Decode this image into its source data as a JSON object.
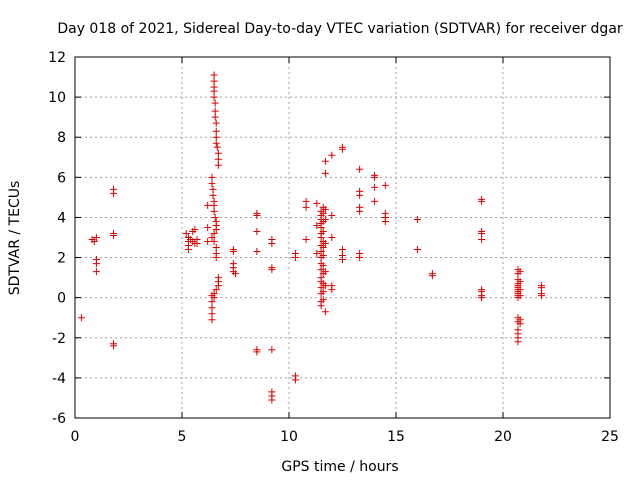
{
  "chart_data": {
    "type": "scatter",
    "title": "Day 018 of 2021, Sidereal Day-to-day VTEC variation (SDTVAR) for receiver dgar",
    "xlabel": "GPS time / hours",
    "ylabel": "SDTVAR / TECUs",
    "xlim": [
      0,
      25
    ],
    "ylim": [
      -6,
      12
    ],
    "xticks": [
      0,
      5,
      10,
      15,
      20,
      25
    ],
    "yticks": [
      -6,
      -4,
      -2,
      0,
      2,
      4,
      6,
      8,
      10,
      12
    ],
    "grid": true,
    "marker": "+",
    "color": "#dd0000",
    "series": [
      {
        "name": "SDTVAR",
        "points": [
          [
            0.3,
            -1.0
          ],
          [
            0.8,
            2.9
          ],
          [
            1.0,
            3.0
          ],
          [
            0.9,
            2.8
          ],
          [
            1.0,
            1.9
          ],
          [
            1.0,
            1.7
          ],
          [
            1.0,
            1.3
          ],
          [
            1.8,
            5.4
          ],
          [
            1.8,
            5.2
          ],
          [
            1.8,
            3.2
          ],
          [
            1.8,
            3.1
          ],
          [
            1.8,
            -2.3
          ],
          [
            1.8,
            -2.4
          ],
          [
            5.2,
            3.2
          ],
          [
            5.3,
            3.0
          ],
          [
            5.3,
            2.8
          ],
          [
            5.3,
            2.6
          ],
          [
            5.3,
            2.4
          ],
          [
            5.4,
            2.9
          ],
          [
            5.5,
            3.3
          ],
          [
            5.5,
            2.8
          ],
          [
            5.6,
            3.4
          ],
          [
            5.6,
            2.7
          ],
          [
            5.7,
            2.9
          ],
          [
            5.7,
            2.7
          ],
          [
            6.2,
            4.6
          ],
          [
            6.2,
            3.5
          ],
          [
            6.2,
            2.8
          ],
          [
            6.5,
            11.1
          ],
          [
            6.5,
            10.8
          ],
          [
            6.5,
            10.5
          ],
          [
            6.5,
            10.3
          ],
          [
            6.5,
            10.0
          ],
          [
            6.55,
            9.7
          ],
          [
            6.55,
            9.3
          ],
          [
            6.55,
            9.0
          ],
          [
            6.6,
            8.7
          ],
          [
            6.6,
            8.3
          ],
          [
            6.6,
            8.0
          ],
          [
            6.6,
            7.7
          ],
          [
            6.65,
            7.5
          ],
          [
            6.7,
            7.2
          ],
          [
            6.7,
            6.9
          ],
          [
            6.7,
            6.6
          ],
          [
            6.4,
            6.0
          ],
          [
            6.4,
            5.7
          ],
          [
            6.45,
            5.4
          ],
          [
            6.45,
            5.1
          ],
          [
            6.5,
            4.8
          ],
          [
            6.5,
            4.6
          ],
          [
            6.5,
            4.3
          ],
          [
            6.55,
            4.0
          ],
          [
            6.6,
            3.8
          ],
          [
            6.6,
            3.6
          ],
          [
            6.6,
            3.4
          ],
          [
            6.5,
            3.2
          ],
          [
            6.4,
            3.0
          ],
          [
            6.5,
            2.8
          ],
          [
            6.6,
            2.5
          ],
          [
            6.6,
            2.2
          ],
          [
            6.6,
            2.0
          ],
          [
            6.7,
            1.0
          ],
          [
            6.7,
            0.8
          ],
          [
            6.7,
            0.6
          ],
          [
            6.6,
            0.4
          ],
          [
            6.5,
            0.2
          ],
          [
            6.5,
            0.0
          ],
          [
            6.4,
            0.1
          ],
          [
            6.4,
            -0.2
          ],
          [
            6.4,
            -0.5
          ],
          [
            6.4,
            -0.8
          ],
          [
            6.4,
            -1.1
          ],
          [
            7.4,
            2.4
          ],
          [
            7.4,
            2.3
          ],
          [
            7.4,
            1.7
          ],
          [
            7.4,
            1.5
          ],
          [
            7.4,
            1.3
          ],
          [
            7.5,
            1.2
          ],
          [
            8.5,
            4.2
          ],
          [
            8.5,
            4.1
          ],
          [
            8.5,
            3.3
          ],
          [
            8.5,
            2.3
          ],
          [
            8.5,
            -2.6
          ],
          [
            8.5,
            -2.7
          ],
          [
            9.2,
            2.9
          ],
          [
            9.2,
            2.7
          ],
          [
            9.2,
            1.5
          ],
          [
            9.2,
            1.4
          ],
          [
            9.2,
            -2.6
          ],
          [
            9.2,
            -4.7
          ],
          [
            9.2,
            -4.9
          ],
          [
            9.2,
            -5.1
          ],
          [
            10.3,
            2.2
          ],
          [
            10.3,
            2.0
          ],
          [
            10.3,
            -3.9
          ],
          [
            10.3,
            -4.1
          ],
          [
            10.8,
            4.8
          ],
          [
            10.8,
            4.5
          ],
          [
            10.8,
            2.9
          ],
          [
            11.3,
            4.7
          ],
          [
            11.3,
            3.6
          ],
          [
            11.3,
            2.2
          ],
          [
            11.5,
            4.3
          ],
          [
            11.5,
            4.1
          ],
          [
            11.5,
            3.9
          ],
          [
            11.5,
            3.7
          ],
          [
            11.5,
            3.5
          ],
          [
            11.5,
            3.2
          ],
          [
            11.5,
            3.0
          ],
          [
            11.5,
            2.6
          ],
          [
            11.5,
            2.3
          ],
          [
            11.5,
            2.0
          ],
          [
            11.5,
            1.7
          ],
          [
            11.5,
            1.4
          ],
          [
            11.5,
            1.0
          ],
          [
            11.5,
            0.8
          ],
          [
            11.5,
            0.5
          ],
          [
            11.5,
            0.2
          ],
          [
            11.5,
            -0.2
          ],
          [
            11.5,
            -0.4
          ],
          [
            11.6,
            4.5
          ],
          [
            11.6,
            4.2
          ],
          [
            11.6,
            3.8
          ],
          [
            11.6,
            3.3
          ],
          [
            11.6,
            2.8
          ],
          [
            11.6,
            2.5
          ],
          [
            11.6,
            2.1
          ],
          [
            11.6,
            1.6
          ],
          [
            11.6,
            1.2
          ],
          [
            11.6,
            0.7
          ],
          [
            11.6,
            0.3
          ],
          [
            11.6,
            -0.1
          ],
          [
            11.7,
            4.4
          ],
          [
            11.7,
            3.9
          ],
          [
            11.7,
            2.7
          ],
          [
            11.7,
            1.3
          ],
          [
            11.7,
            0.6
          ],
          [
            11.7,
            -0.7
          ],
          [
            11.7,
            6.8
          ],
          [
            11.7,
            6.2
          ],
          [
            12.0,
            7.1
          ],
          [
            12.0,
            4.1
          ],
          [
            12.0,
            3.0
          ],
          [
            12.0,
            0.6
          ],
          [
            12.0,
            0.4
          ],
          [
            12.5,
            7.5
          ],
          [
            12.5,
            7.4
          ],
          [
            12.5,
            2.4
          ],
          [
            12.5,
            2.1
          ],
          [
            12.5,
            1.9
          ],
          [
            13.3,
            6.4
          ],
          [
            13.3,
            5.3
          ],
          [
            13.3,
            5.1
          ],
          [
            13.3,
            4.5
          ],
          [
            13.3,
            4.3
          ],
          [
            13.3,
            2.2
          ],
          [
            13.3,
            2.0
          ],
          [
            14.0,
            6.1
          ],
          [
            14.0,
            6.0
          ],
          [
            14.0,
            5.5
          ],
          [
            14.0,
            4.8
          ],
          [
            14.5,
            5.6
          ],
          [
            14.5,
            4.2
          ],
          [
            14.5,
            4.0
          ],
          [
            14.5,
            3.8
          ],
          [
            16.0,
            3.9
          ],
          [
            16.0,
            2.4
          ],
          [
            16.7,
            1.2
          ],
          [
            16.7,
            1.1
          ],
          [
            19.0,
            4.9
          ],
          [
            19.0,
            4.8
          ],
          [
            19.0,
            3.3
          ],
          [
            19.0,
            3.2
          ],
          [
            19.0,
            2.9
          ],
          [
            19.0,
            0.4
          ],
          [
            19.0,
            0.3
          ],
          [
            19.0,
            0.1
          ],
          [
            19.0,
            0.0
          ],
          [
            20.7,
            1.4
          ],
          [
            20.7,
            1.2
          ],
          [
            20.7,
            0.9
          ],
          [
            20.7,
            0.7
          ],
          [
            20.7,
            0.6
          ],
          [
            20.7,
            0.5
          ],
          [
            20.7,
            0.4
          ],
          [
            20.7,
            0.3
          ],
          [
            20.7,
            0.2
          ],
          [
            20.7,
            0.1
          ],
          [
            20.7,
            0.0
          ],
          [
            20.8,
            1.3
          ],
          [
            20.8,
            0.8
          ],
          [
            20.8,
            0.4
          ],
          [
            20.8,
            0.1
          ],
          [
            20.7,
            -1.0
          ],
          [
            20.7,
            -1.2
          ],
          [
            20.7,
            -1.6
          ],
          [
            20.7,
            -1.8
          ],
          [
            20.7,
            -2.0
          ],
          [
            20.7,
            -2.2
          ],
          [
            20.8,
            -1.1
          ],
          [
            20.8,
            -1.3
          ],
          [
            21.8,
            0.6
          ],
          [
            21.8,
            0.5
          ],
          [
            21.8,
            0.2
          ],
          [
            21.8,
            0.1
          ]
        ]
      }
    ]
  }
}
